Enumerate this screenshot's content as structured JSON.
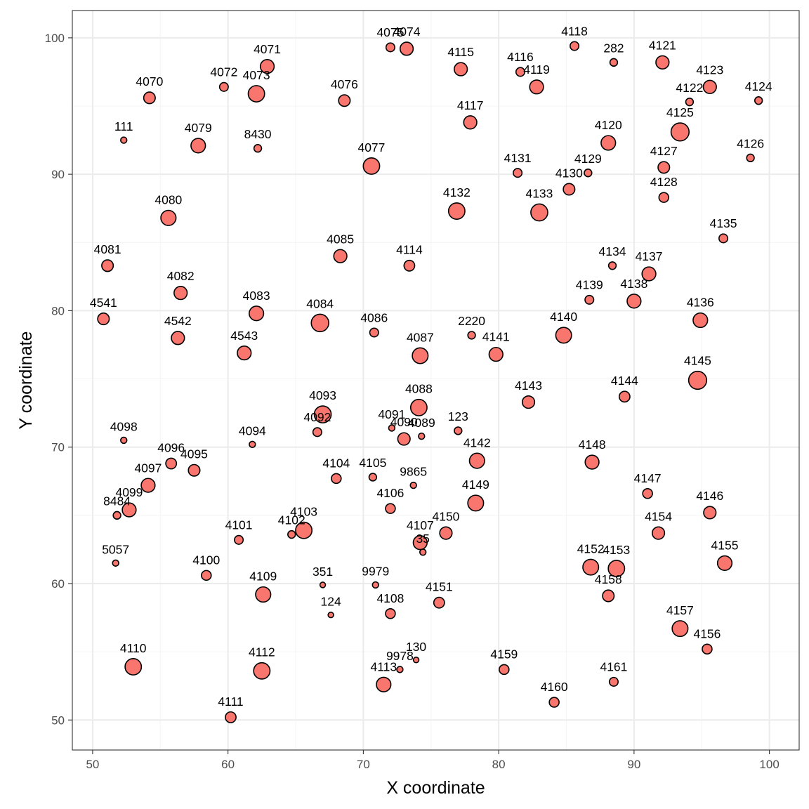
{
  "chart_data": {
    "type": "scatter",
    "title": "",
    "xlabel": "X coordinate",
    "ylabel": "Y coordinate",
    "xlim": [
      48.5,
      102.2
    ],
    "ylim": [
      47.8,
      102.0
    ],
    "xticks": [
      50,
      60,
      70,
      80,
      90,
      100
    ],
    "yticks": [
      50,
      60,
      70,
      80,
      90,
      100
    ],
    "grid": true,
    "legend": "none",
    "colors": {
      "point_fill": "#f8766d",
      "point_stroke": "#000000",
      "grid": "#ebebeb",
      "panel_border": "#333333"
    },
    "size_encoding": "point area (no legend shown)",
    "points": [
      {
        "label": "4075",
        "x": 72.0,
        "y": 99.3,
        "size": 2.0
      },
      {
        "label": "4074",
        "x": 73.2,
        "y": 99.2,
        "size": 4.5
      },
      {
        "label": "4071",
        "x": 62.9,
        "y": 97.9,
        "size": 5.0
      },
      {
        "label": "4115",
        "x": 77.2,
        "y": 97.7,
        "size": 4.5
      },
      {
        "label": "4116",
        "x": 81.6,
        "y": 97.5,
        "size": 2.0
      },
      {
        "label": "4118",
        "x": 85.6,
        "y": 99.4,
        "size": 2.0
      },
      {
        "label": "282",
        "x": 88.5,
        "y": 98.2,
        "size": 1.5
      },
      {
        "label": "4121",
        "x": 92.1,
        "y": 98.2,
        "size": 4.5
      },
      {
        "label": "4072",
        "x": 59.7,
        "y": 96.4,
        "size": 2.0
      },
      {
        "label": "4073",
        "x": 62.1,
        "y": 95.9,
        "size": 7.0
      },
      {
        "label": "4070",
        "x": 54.2,
        "y": 95.6,
        "size": 3.5
      },
      {
        "label": "4076",
        "x": 68.6,
        "y": 95.4,
        "size": 3.5
      },
      {
        "label": "4119",
        "x": 82.8,
        "y": 96.4,
        "size": 5.0
      },
      {
        "label": "4123",
        "x": 95.6,
        "y": 96.4,
        "size": 4.5
      },
      {
        "label": "4122",
        "x": 94.1,
        "y": 95.3,
        "size": 1.5
      },
      {
        "label": "4124",
        "x": 99.2,
        "y": 95.4,
        "size": 1.5
      },
      {
        "label": "4117",
        "x": 77.9,
        "y": 93.8,
        "size": 4.5
      },
      {
        "label": "111",
        "x": 52.3,
        "y": 92.5,
        "size": 1.0
      },
      {
        "label": "4079",
        "x": 57.8,
        "y": 92.1,
        "size": 5.5
      },
      {
        "label": "8430",
        "x": 62.2,
        "y": 91.9,
        "size": 1.5
      },
      {
        "label": "4125",
        "x": 93.4,
        "y": 93.1,
        "size": 8.5
      },
      {
        "label": "4120",
        "x": 88.1,
        "y": 92.3,
        "size": 5.5
      },
      {
        "label": "4126",
        "x": 98.6,
        "y": 91.2,
        "size": 1.5
      },
      {
        "label": "4077",
        "x": 70.6,
        "y": 90.6,
        "size": 7.0
      },
      {
        "label": "4127",
        "x": 92.2,
        "y": 90.5,
        "size": 3.5
      },
      {
        "label": "4131",
        "x": 81.4,
        "y": 90.1,
        "size": 2.0
      },
      {
        "label": "4129",
        "x": 86.6,
        "y": 90.1,
        "size": 1.5
      },
      {
        "label": "4130",
        "x": 85.2,
        "y": 88.9,
        "size": 3.5
      },
      {
        "label": "4128",
        "x": 92.2,
        "y": 88.3,
        "size": 2.5
      },
      {
        "label": "4132",
        "x": 76.9,
        "y": 87.3,
        "size": 7.0
      },
      {
        "label": "4133",
        "x": 83.0,
        "y": 87.2,
        "size": 7.5
      },
      {
        "label": "4080",
        "x": 55.6,
        "y": 86.8,
        "size": 6.0
      },
      {
        "label": "4135",
        "x": 96.6,
        "y": 85.3,
        "size": 2.0
      },
      {
        "label": "4081",
        "x": 51.1,
        "y": 83.3,
        "size": 3.5
      },
      {
        "label": "4085",
        "x": 68.3,
        "y": 84.0,
        "size": 4.5
      },
      {
        "label": "4114",
        "x": 73.4,
        "y": 83.3,
        "size": 3.0
      },
      {
        "label": "4134",
        "x": 88.4,
        "y": 83.3,
        "size": 1.5
      },
      {
        "label": "4137",
        "x": 91.1,
        "y": 82.7,
        "size": 5.0
      },
      {
        "label": "4082",
        "x": 56.5,
        "y": 81.3,
        "size": 4.5
      },
      {
        "label": "4139",
        "x": 86.7,
        "y": 80.8,
        "size": 2.0
      },
      {
        "label": "4138",
        "x": 90.0,
        "y": 80.7,
        "size": 5.0
      },
      {
        "label": "4541",
        "x": 50.8,
        "y": 79.4,
        "size": 3.5
      },
      {
        "label": "4083",
        "x": 62.1,
        "y": 79.8,
        "size": 5.5
      },
      {
        "label": "4084",
        "x": 66.8,
        "y": 79.1,
        "size": 8.0
      },
      {
        "label": "4086",
        "x": 70.8,
        "y": 78.4,
        "size": 2.0
      },
      {
        "label": "2220",
        "x": 78.0,
        "y": 78.2,
        "size": 1.5
      },
      {
        "label": "4140",
        "x": 84.8,
        "y": 78.2,
        "size": 6.5
      },
      {
        "label": "4136",
        "x": 94.9,
        "y": 79.3,
        "size": 5.5
      },
      {
        "label": "4542",
        "x": 56.3,
        "y": 78.0,
        "size": 4.5
      },
      {
        "label": "4543",
        "x": 61.2,
        "y": 76.9,
        "size": 5.0
      },
      {
        "label": "4087",
        "x": 74.2,
        "y": 76.7,
        "size": 6.5
      },
      {
        "label": "4141",
        "x": 79.8,
        "y": 76.8,
        "size": 5.0
      },
      {
        "label": "4145",
        "x": 94.7,
        "y": 74.9,
        "size": 8.5
      },
      {
        "label": "4143",
        "x": 82.2,
        "y": 73.3,
        "size": 4.0
      },
      {
        "label": "4144",
        "x": 89.3,
        "y": 73.7,
        "size": 3.0
      },
      {
        "label": "4093",
        "x": 67.0,
        "y": 72.4,
        "size": 7.5
      },
      {
        "label": "4088",
        "x": 74.1,
        "y": 72.9,
        "size": 7.0
      },
      {
        "label": "4091",
        "x": 72.1,
        "y": 71.4,
        "size": 1.0
      },
      {
        "label": "4092",
        "x": 66.6,
        "y": 71.1,
        "size": 2.0
      },
      {
        "label": "123",
        "x": 77.0,
        "y": 71.2,
        "size": 1.5
      },
      {
        "label": "4089",
        "x": 74.3,
        "y": 70.8,
        "size": 1.0
      },
      {
        "label": "4098",
        "x": 52.3,
        "y": 70.5,
        "size": 1.0
      },
      {
        "label": "4094",
        "x": 61.8,
        "y": 70.2,
        "size": 1.0
      },
      {
        "label": "4090",
        "x": 73.0,
        "y": 70.6,
        "size": 4.0
      },
      {
        "label": "4096",
        "x": 55.8,
        "y": 68.8,
        "size": 3.0
      },
      {
        "label": "4095",
        "x": 57.5,
        "y": 68.3,
        "size": 3.5
      },
      {
        "label": "4142",
        "x": 78.4,
        "y": 69.0,
        "size": 6.0
      },
      {
        "label": "4148",
        "x": 86.9,
        "y": 68.9,
        "size": 5.0
      },
      {
        "label": "4104",
        "x": 68.0,
        "y": 67.7,
        "size": 2.5
      },
      {
        "label": "4105",
        "x": 70.7,
        "y": 67.8,
        "size": 1.5
      },
      {
        "label": "9865",
        "x": 73.7,
        "y": 67.2,
        "size": 1.0
      },
      {
        "label": "4097",
        "x": 54.1,
        "y": 67.2,
        "size": 5.0
      },
      {
        "label": "4147",
        "x": 91.0,
        "y": 66.6,
        "size": 2.5
      },
      {
        "label": "4149",
        "x": 78.3,
        "y": 65.9,
        "size": 6.5
      },
      {
        "label": "8484",
        "x": 51.8,
        "y": 65.0,
        "size": 1.5
      },
      {
        "label": "4099",
        "x": 52.7,
        "y": 65.4,
        "size": 5.0
      },
      {
        "label": "4106",
        "x": 72.0,
        "y": 65.5,
        "size": 2.5
      },
      {
        "label": "4146",
        "x": 95.6,
        "y": 65.2,
        "size": 4.0
      },
      {
        "label": "4102",
        "x": 64.7,
        "y": 63.6,
        "size": 1.5
      },
      {
        "label": "4103",
        "x": 65.6,
        "y": 63.9,
        "size": 7.0
      },
      {
        "label": "4101",
        "x": 60.8,
        "y": 63.2,
        "size": 2.0
      },
      {
        "label": "4150",
        "x": 76.1,
        "y": 63.7,
        "size": 4.0
      },
      {
        "label": "4107",
        "x": 74.2,
        "y": 63.0,
        "size": 5.0
      },
      {
        "label": "35",
        "x": 74.4,
        "y": 62.3,
        "size": 1.0
      },
      {
        "label": "4154",
        "x": 91.8,
        "y": 63.7,
        "size": 4.0
      },
      {
        "label": "5057",
        "x": 51.7,
        "y": 61.5,
        "size": 1.0
      },
      {
        "label": "4152",
        "x": 86.8,
        "y": 61.2,
        "size": 6.5
      },
      {
        "label": "4153",
        "x": 88.7,
        "y": 61.1,
        "size": 7.0
      },
      {
        "label": "4155",
        "x": 96.7,
        "y": 61.5,
        "size": 5.5
      },
      {
        "label": "4100",
        "x": 58.4,
        "y": 60.6,
        "size": 2.5
      },
      {
        "label": "351",
        "x": 67.0,
        "y": 59.9,
        "size": 0.8
      },
      {
        "label": "9979",
        "x": 70.9,
        "y": 59.9,
        "size": 1.0
      },
      {
        "label": "4109",
        "x": 62.6,
        "y": 59.2,
        "size": 6.0
      },
      {
        "label": "4158",
        "x": 88.1,
        "y": 59.1,
        "size": 3.5
      },
      {
        "label": "4151",
        "x": 75.6,
        "y": 58.6,
        "size": 3.0
      },
      {
        "label": "124",
        "x": 67.6,
        "y": 57.7,
        "size": 0.8
      },
      {
        "label": "4108",
        "x": 72.0,
        "y": 57.8,
        "size": 2.5
      },
      {
        "label": "4157",
        "x": 93.4,
        "y": 56.7,
        "size": 6.5
      },
      {
        "label": "4156",
        "x": 95.4,
        "y": 55.2,
        "size": 2.5
      },
      {
        "label": "130",
        "x": 73.9,
        "y": 54.4,
        "size": 0.8
      },
      {
        "label": "9978",
        "x": 72.7,
        "y": 53.7,
        "size": 1.0
      },
      {
        "label": "4110",
        "x": 53.0,
        "y": 53.9,
        "size": 7.0
      },
      {
        "label": "4112",
        "x": 62.5,
        "y": 53.6,
        "size": 7.0
      },
      {
        "label": "4159",
        "x": 80.4,
        "y": 53.7,
        "size": 2.5
      },
      {
        "label": "4113",
        "x": 71.5,
        "y": 52.6,
        "size": 5.5
      },
      {
        "label": "4161",
        "x": 88.5,
        "y": 52.8,
        "size": 2.0
      },
      {
        "label": "4160",
        "x": 84.1,
        "y": 51.3,
        "size": 2.5
      },
      {
        "label": "4111",
        "x": 60.2,
        "y": 50.2,
        "size": 3.0
      }
    ]
  }
}
